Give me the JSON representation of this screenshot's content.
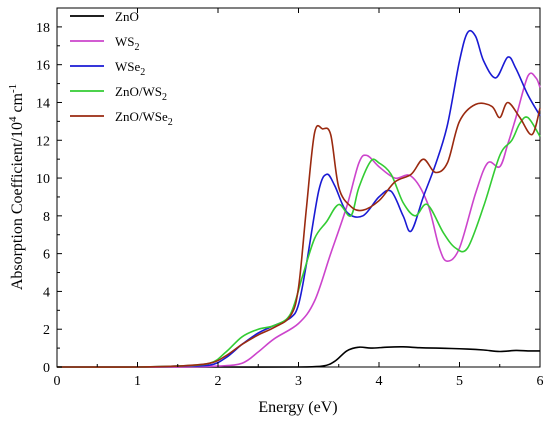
{
  "chart_data": {
    "type": "line",
    "xlabel": "Energy (eV)",
    "ylabel_parts": {
      "pre": "Absorption Coefficient/10",
      "sup1": "4",
      "mid": " cm",
      "sup2": "-1"
    },
    "xlim": [
      0,
      6
    ],
    "ylim": [
      0,
      19
    ],
    "xticks": [
      0,
      1,
      2,
      3,
      4,
      5,
      6
    ],
    "yticks": [
      0,
      2,
      4,
      6,
      8,
      10,
      12,
      14,
      16,
      18
    ],
    "legend_position": "top-left",
    "series": [
      {
        "name": "ZnO",
        "base": "ZnO",
        "sub": "",
        "color": "#000000",
        "x": [
          0,
          1,
          2,
          3,
          3.3,
          3.45,
          3.6,
          3.75,
          3.9,
          4.1,
          4.3,
          4.5,
          4.7,
          4.9,
          5.1,
          5.3,
          5.5,
          5.7,
          5.85,
          6.0
        ],
        "y": [
          0,
          0,
          0,
          0,
          0.05,
          0.3,
          0.85,
          1.05,
          1.0,
          1.05,
          1.07,
          1.02,
          1.0,
          0.98,
          0.95,
          0.9,
          0.82,
          0.88,
          0.85,
          0.85
        ]
      },
      {
        "name": "WS2",
        "base": "WS",
        "sub": "2",
        "color": "#cc44cc",
        "x": [
          0,
          1,
          1.5,
          2,
          2.3,
          2.5,
          2.7,
          3.0,
          3.2,
          3.4,
          3.6,
          3.75,
          3.85,
          4.0,
          4.2,
          4.4,
          4.6,
          4.75,
          4.85,
          5.0,
          5.2,
          5.35,
          5.5,
          5.6,
          5.7,
          5.85,
          5.95,
          6.0
        ],
        "y": [
          0,
          0,
          0,
          0.05,
          0.2,
          0.8,
          1.5,
          2.3,
          3.5,
          6.0,
          8.5,
          10.8,
          11.2,
          10.6,
          10.0,
          10.1,
          8.7,
          6.3,
          5.6,
          6.3,
          9.2,
          10.8,
          10.6,
          11.8,
          13.2,
          15.4,
          15.3,
          14.8
        ]
      },
      {
        "name": "WSe2",
        "base": "WSe",
        "sub": "2",
        "color": "#1a1ad4",
        "x": [
          0,
          1,
          1.5,
          1.9,
          2.1,
          2.3,
          2.5,
          2.7,
          2.9,
          3.0,
          3.1,
          3.25,
          3.35,
          3.45,
          3.6,
          3.8,
          4.0,
          4.15,
          4.3,
          4.4,
          4.55,
          4.7,
          4.85,
          5.0,
          5.1,
          5.2,
          5.3,
          5.45,
          5.6,
          5.7,
          5.85,
          6.0
        ],
        "y": [
          0,
          0,
          0.05,
          0.1,
          0.5,
          1.2,
          1.8,
          2.2,
          2.6,
          3.3,
          5.5,
          9.3,
          10.2,
          9.6,
          8.2,
          8.0,
          9.0,
          9.3,
          8.0,
          7.2,
          9.0,
          10.7,
          12.8,
          16.2,
          17.7,
          17.5,
          16.2,
          15.3,
          16.4,
          15.8,
          14.4,
          13.3
        ]
      },
      {
        "name": "ZnO/WS2",
        "base": "ZnO/WS",
        "sub": "2",
        "color": "#33cc33",
        "x": [
          0,
          1,
          1.5,
          1.9,
          2.1,
          2.3,
          2.5,
          2.7,
          2.9,
          3.05,
          3.2,
          3.35,
          3.5,
          3.65,
          3.75,
          3.9,
          4.0,
          4.15,
          4.3,
          4.45,
          4.6,
          4.8,
          4.95,
          5.1,
          5.3,
          5.5,
          5.65,
          5.75,
          5.85,
          6.0
        ],
        "y": [
          0,
          0,
          0.05,
          0.2,
          0.8,
          1.6,
          2.0,
          2.2,
          2.8,
          4.8,
          6.8,
          7.7,
          8.6,
          8.0,
          9.5,
          10.9,
          10.8,
          10.2,
          8.7,
          8.0,
          8.6,
          7.1,
          6.3,
          6.3,
          8.5,
          11.2,
          12.0,
          12.9,
          13.2,
          12.2
        ]
      },
      {
        "name": "ZnO/WSe2",
        "base": "ZnO/WSe",
        "sub": "2",
        "color": "#9a2a10",
        "x": [
          0,
          1,
          1.5,
          1.9,
          2.1,
          2.3,
          2.5,
          2.7,
          2.9,
          3.0,
          3.1,
          3.2,
          3.3,
          3.4,
          3.5,
          3.65,
          3.8,
          4.0,
          4.2,
          4.4,
          4.55,
          4.7,
          4.85,
          5.0,
          5.2,
          5.4,
          5.5,
          5.6,
          5.75,
          5.9,
          6.0
        ],
        "y": [
          0,
          0,
          0.05,
          0.2,
          0.6,
          1.2,
          1.7,
          2.1,
          2.7,
          4.2,
          8.5,
          12.4,
          12.6,
          12.3,
          9.5,
          8.5,
          8.3,
          8.8,
          9.8,
          10.2,
          11.0,
          10.3,
          10.8,
          13.0,
          13.9,
          13.8,
          13.2,
          14.0,
          13.2,
          12.3,
          13.7
        ]
      }
    ]
  }
}
